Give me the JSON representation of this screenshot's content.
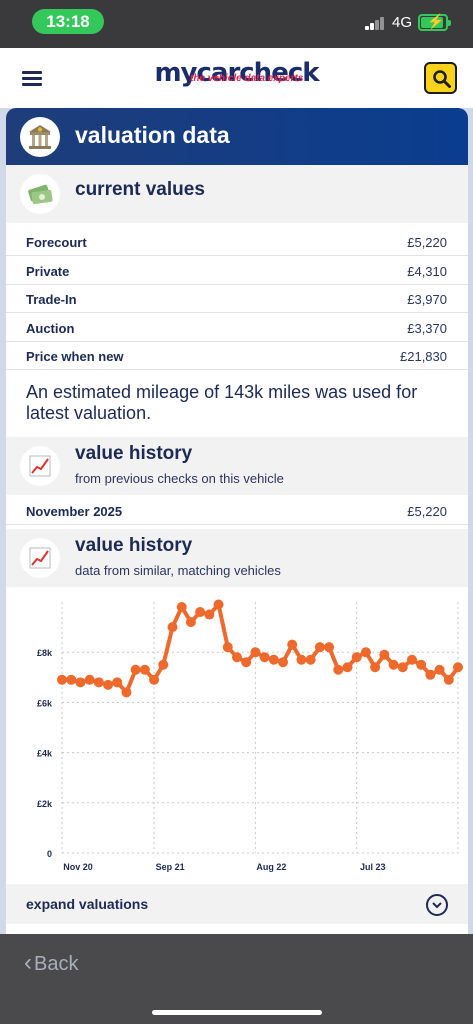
{
  "status": {
    "time": "13:18",
    "network": "4G"
  },
  "header": {
    "logo": "mycarcheck",
    "tagline": "the vehicle data experts"
  },
  "banner": {
    "title": "valuation data"
  },
  "current_values": {
    "title": "current values",
    "rows": [
      {
        "label": "Forecourt",
        "value": "£5,220"
      },
      {
        "label": "Private",
        "value": "£4,310"
      },
      {
        "label": "Trade-In",
        "value": "£3,970"
      },
      {
        "label": "Auction",
        "value": "£3,370"
      },
      {
        "label": "Price when new",
        "value": "£21,830"
      }
    ],
    "note": "An estimated mileage of 143k miles was used for latest valuation."
  },
  "value_history_prev": {
    "title": "value history",
    "subtitle": "from previous checks on this vehicle",
    "rows": [
      {
        "label": "November 2025",
        "value": "£5,220"
      }
    ]
  },
  "value_history_similar": {
    "title": "value history",
    "subtitle": "data from similar, matching vehicles"
  },
  "chart_data": {
    "type": "line",
    "color": "#ee6a2c",
    "y_ticks": [
      "0",
      "£2k",
      "£4k",
      "£6k",
      "£8k"
    ],
    "y_tick_values": [
      0,
      2000,
      4000,
      6000,
      8000
    ],
    "x_ticks": [
      "Nov 20",
      "Sep 21",
      "Aug 22",
      "Jul 23"
    ],
    "x_tick_index": [
      0,
      10,
      21,
      32
    ],
    "ylim": [
      0,
      10000
    ],
    "grid": true,
    "values": [
      6900,
      6900,
      6800,
      6900,
      6800,
      6700,
      6800,
      6400,
      7300,
      7300,
      6900,
      7500,
      9000,
      9800,
      9200,
      9600,
      9500,
      9900,
      8200,
      7800,
      7600,
      8000,
      7800,
      7700,
      7600,
      8300,
      7700,
      7700,
      8200,
      8200,
      7300,
      7400,
      7800,
      8000,
      7400,
      7900,
      7500,
      7400,
      7700,
      7500,
      7100,
      7300,
      6900,
      7400
    ]
  },
  "expand": {
    "label": "expand valuations"
  },
  "bottom": {
    "back_label": "Back"
  }
}
